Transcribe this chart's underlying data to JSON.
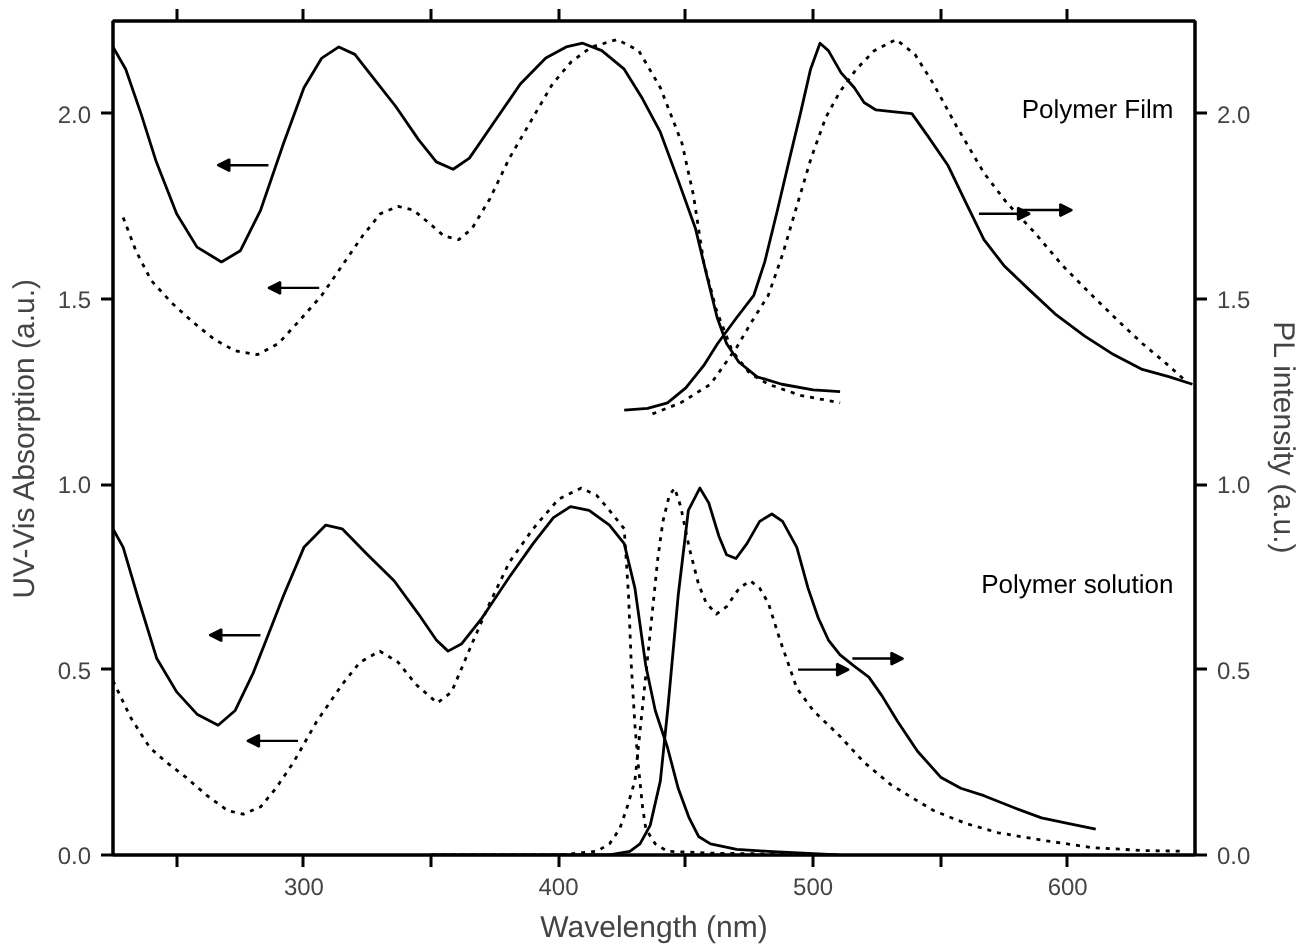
{
  "chart_data": {
    "type": "line",
    "xlabel": "Wavelength (nm)",
    "ylabel": "UV-Vis Absorption (a.u.)",
    "y2label": "PL intensity (a.u.)",
    "xlim": [
      225,
      650
    ],
    "xticks": [
      {
        "value": 250,
        "label": null
      },
      300,
      {
        "value": 350,
        "label": null
      },
      400,
      {
        "value": 450,
        "label": null
      },
      500,
      {
        "value": 550,
        "label": null
      },
      600
    ],
    "ylim": [
      0,
      2.25
    ],
    "yticks": [
      {
        "value": 0,
        "label": "0.0"
      },
      0.5,
      {
        "value": 1,
        "label": "1.0"
      },
      1.5,
      {
        "value": 2,
        "label": "2.0"
      }
    ],
    "y2lim": [
      0,
      2.25
    ],
    "y2ticks": [
      {
        "value": 0,
        "label": "0.0"
      },
      0.5,
      {
        "value": 1,
        "label": "1.0"
      },
      1.5,
      {
        "value": 2,
        "label": "2.0"
      }
    ],
    "grid": false,
    "marker": "none",
    "series": [
      {
        "color": "#000000",
        "line_style": "solid",
        "x": [
          225,
          230,
          236,
          242,
          250,
          258,
          267.6,
          275,
          283,
          292,
          300,
          307,
          313.7,
          320,
          328,
          336,
          345,
          352,
          358.6,
          365,
          375,
          385,
          395,
          403,
          409.5,
          417,
          425.8,
          433,
          440,
          447,
          453.8,
          458,
          462.3,
          466,
          470.8,
          478,
          487.7,
          500,
          510.6
        ],
        "values": [
          2.18,
          2.12,
          2.0,
          1.87,
          1.73,
          1.64,
          1.6,
          1.63,
          1.74,
          1.92,
          2.07,
          2.15,
          2.18,
          2.16,
          2.09,
          2.02,
          1.93,
          1.87,
          1.85,
          1.88,
          1.98,
          2.08,
          2.15,
          2.18,
          2.19,
          2.17,
          2.12,
          2.04,
          1.95,
          1.82,
          1.69,
          1.57,
          1.45,
          1.38,
          1.33,
          1.29,
          1.27,
          1.255,
          1.25
        ]
      },
      {
        "color": "#000000",
        "line_style": "dotted",
        "x": [
          229,
          234,
          240,
          248,
          256,
          265,
          273,
          281.8,
          290,
          298,
          307,
          315,
          323,
          330,
          336.9,
          343,
          350,
          355,
          360.8,
          366,
          373,
          380.7,
          390,
          397.6,
          405,
          413,
          423,
          431.5,
          440,
          448.5,
          453,
          457,
          462,
          468.2,
          475,
          482.4,
          495,
          510.6
        ],
        "values": [
          1.72,
          1.63,
          1.55,
          1.49,
          1.44,
          1.39,
          1.36,
          1.35,
          1.38,
          1.44,
          1.51,
          1.59,
          1.67,
          1.73,
          1.75,
          1.74,
          1.7,
          1.67,
          1.66,
          1.69,
          1.77,
          1.88,
          1.99,
          2.08,
          2.14,
          2.18,
          2.2,
          2.17,
          2.07,
          1.92,
          1.78,
          1.6,
          1.47,
          1.36,
          1.3,
          1.27,
          1.24,
          1.22
        ]
      },
      {
        "color": "#000000",
        "line_style": "solid",
        "axis": "y2",
        "x": [
          425.8,
          435,
          442.8,
          450,
          457,
          462.5,
          470,
          476.7,
          481,
          486,
          490.8,
          495,
          499,
          502.7,
          506,
          511,
          516.2,
          520,
          524.7,
          532,
          538.8,
          545,
          553,
          560,
          567.1,
          575,
          584.1,
          595,
          606.7,
          618,
          629.3,
          640,
          649
        ],
        "values": [
          1.2,
          1.205,
          1.22,
          1.26,
          1.32,
          1.38,
          1.45,
          1.51,
          1.6,
          1.74,
          1.88,
          2.0,
          2.12,
          2.19,
          2.17,
          2.11,
          2.07,
          2.03,
          2.01,
          2.005,
          2.0,
          1.94,
          1.86,
          1.76,
          1.66,
          1.59,
          1.53,
          1.46,
          1.4,
          1.35,
          1.31,
          1.29,
          1.27
        ]
      },
      {
        "color": "#000000",
        "line_style": "dotted",
        "axis": "y2",
        "x": [
          436.9,
          448,
          459.7,
          470,
          476,
          482.4,
          488,
          494,
          499.2,
          505,
          510.6,
          517,
          524,
          532.6,
          540,
          547.3,
          556,
          567.1,
          576,
          586.9,
          598,
          609.5,
          620,
          629.3,
          638,
          646.2
        ],
        "values": [
          1.19,
          1.22,
          1.27,
          1.37,
          1.44,
          1.51,
          1.62,
          1.76,
          1.88,
          1.99,
          2.06,
          2.12,
          2.17,
          2.2,
          2.16,
          2.08,
          1.97,
          1.84,
          1.76,
          1.68,
          1.59,
          1.51,
          1.44,
          1.38,
          1.33,
          1.28
        ]
      },
      {
        "color": "#000000",
        "line_style": "solid",
        "x": [
          225,
          229,
          235,
          242.2,
          250,
          258,
          266.3,
          273,
          280,
          284.6,
          292,
          300,
          308.6,
          315,
          325,
          335.4,
          345,
          352,
          356.6,
          362,
          370,
          380.7,
          390,
          398,
          404.7,
          412,
          420,
          425.8,
          430,
          434.3,
          438,
          442.8,
          447,
          451.3,
          455,
          459.7,
          470,
          482.4,
          510
        ],
        "values": [
          0.88,
          0.83,
          0.69,
          0.53,
          0.44,
          0.38,
          0.35,
          0.39,
          0.49,
          0.57,
          0.7,
          0.83,
          0.89,
          0.88,
          0.81,
          0.74,
          0.65,
          0.58,
          0.55,
          0.57,
          0.64,
          0.75,
          0.84,
          0.91,
          0.94,
          0.93,
          0.89,
          0.84,
          0.72,
          0.51,
          0.39,
          0.29,
          0.18,
          0.1,
          0.05,
          0.03,
          0.015,
          0.01,
          0.0
        ]
      },
      {
        "color": "#000000",
        "line_style": "dotted",
        "x": [
          225,
          232,
          239.4,
          246,
          253.6,
          262,
          270,
          276.1,
          283,
          289,
          295.9,
          305,
          315,
          322,
          329.8,
          337,
          344,
          352.4,
          358,
          366,
          373,
          380.7,
          390,
          400,
          408.9,
          415,
          420,
          425.8,
          427.5,
          428.6,
          430,
          431.5,
          433,
          434.3,
          438,
          442.8,
          460,
          510
        ],
        "values": [
          0.47,
          0.37,
          0.29,
          0.25,
          0.21,
          0.16,
          0.12,
          0.11,
          0.13,
          0.18,
          0.25,
          0.36,
          0.46,
          0.52,
          0.55,
          0.52,
          0.46,
          0.41,
          0.44,
          0.57,
          0.68,
          0.79,
          0.88,
          0.96,
          0.99,
          0.97,
          0.93,
          0.88,
          0.7,
          0.51,
          0.35,
          0.23,
          0.13,
          0.07,
          0.03,
          0.01,
          0.005,
          0.0
        ]
      },
      {
        "color": "#000000",
        "line_style": "solid",
        "axis": "y2",
        "x": [
          350,
          400,
          420,
          428,
          432,
          436,
          438,
          440,
          443,
          447,
          451,
          455.5,
          459,
          463,
          466,
          469.7,
          474,
          479,
          483.8,
          488,
          493.6,
          498,
          502,
          506,
          510.6,
          516,
          521.9,
          527,
          533.2,
          541,
          550.1,
          558,
          567.1,
          578,
          589.7,
          600,
          611
        ],
        "values": [
          0.0,
          0.0,
          0.0,
          0.01,
          0.03,
          0.08,
          0.14,
          0.2,
          0.4,
          0.7,
          0.93,
          0.99,
          0.95,
          0.86,
          0.81,
          0.8,
          0.84,
          0.9,
          0.92,
          0.9,
          0.83,
          0.72,
          0.64,
          0.58,
          0.54,
          0.51,
          0.48,
          0.43,
          0.36,
          0.28,
          0.21,
          0.18,
          0.16,
          0.13,
          0.1,
          0.085,
          0.07
        ]
      },
      {
        "color": "#000000",
        "line_style": "dotted",
        "axis": "y2",
        "x": [
          350,
          400,
          415,
          420,
          424,
          427,
          430,
          433,
          436,
          439,
          441,
          443.5,
          445.6,
          448,
          451.3,
          455,
          458,
          462,
          466,
          471,
          475.3,
          479,
          482.4,
          487,
          493.6,
          500,
          510.6,
          520,
          530.5,
          540,
          547.3,
          560,
          572.7,
          590,
          609.5,
          630,
          646.2
        ],
        "values": [
          0.0,
          0.0,
          0.01,
          0.03,
          0.07,
          0.13,
          0.2,
          0.4,
          0.6,
          0.8,
          0.9,
          0.97,
          0.99,
          0.94,
          0.83,
          0.73,
          0.68,
          0.65,
          0.67,
          0.72,
          0.74,
          0.72,
          0.68,
          0.58,
          0.45,
          0.39,
          0.32,
          0.25,
          0.19,
          0.15,
          0.12,
          0.085,
          0.06,
          0.04,
          0.02,
          0.012,
          0.01
        ]
      }
    ],
    "annotations": [
      "Polymer Film",
      "Polymer solution"
    ]
  }
}
